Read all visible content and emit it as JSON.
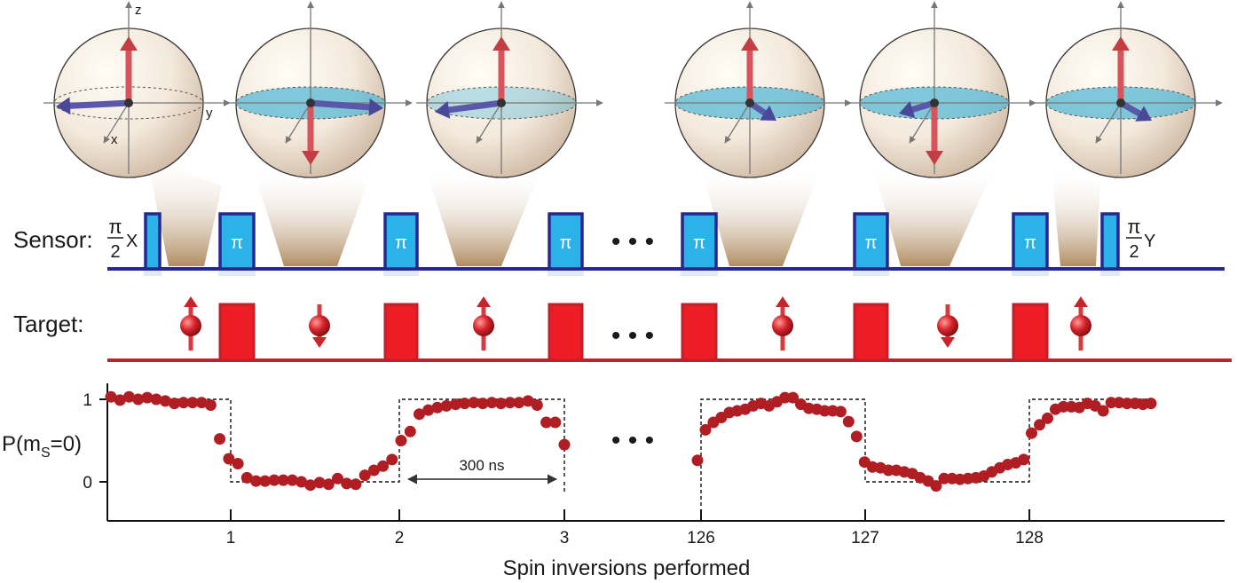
{
  "labels": {
    "sensor": "Sensor:",
    "target": "Target:",
    "ylabel": "P(m",
    "ylabel_sub": "S",
    "ylabel_tail": "=0)",
    "xlabel": "Spin inversions performed",
    "interval": "300 ns",
    "ellipsis": "• • •"
  },
  "sphere_axes": {
    "z": "z",
    "y": "y",
    "x": "x"
  },
  "pulses": {
    "pi": "π",
    "half_num": "π",
    "half_den": "2",
    "first_axis": "X",
    "last_axis": "Y"
  },
  "target_spins": [
    "up",
    "down",
    "up",
    "up",
    "down",
    "up"
  ],
  "colors": {
    "sensor_line": "#25288f",
    "sensor_fill": "#2bb2e8",
    "target_line": "#c0202a",
    "target_fill": "#ee1c25",
    "data": "#b01e24",
    "cone": "#a88050",
    "equator": "#57b8d6"
  },
  "chart_data": {
    "type": "scatter",
    "xlabel": "Spin inversions performed",
    "ylabel": "P(m_S=0)",
    "x_tick_labels": [
      "1",
      "2",
      "3",
      "126",
      "127",
      "128"
    ],
    "y_tick_labels": [
      "0",
      "1"
    ],
    "ylim": [
      -0.35,
      1.1
    ],
    "segments": [
      {
        "x_range": [
          0,
          3
        ],
        "values": [
          1.03,
          0.99,
          1.03,
          1.0,
          1.02,
          1.0,
          0.98,
          0.95,
          0.96,
          0.96,
          0.96,
          0.93,
          0.52,
          0.28,
          0.22,
          0.05,
          0.01,
          0.01,
          0.02,
          0.02,
          0.02,
          0.0,
          -0.04,
          -0.01,
          -0.03,
          0.04,
          -0.02,
          -0.03,
          0.08,
          0.14,
          0.19,
          0.27,
          0.5,
          0.61,
          0.82,
          0.87,
          0.9,
          0.92,
          0.94,
          0.95,
          0.96,
          0.95,
          0.96,
          0.95,
          0.96,
          0.96,
          0.98,
          0.93,
          0.72,
          0.72,
          0.45
        ]
      },
      {
        "x_range": [
          126,
          129
        ],
        "values": [
          0.26,
          0.63,
          0.72,
          0.78,
          0.84,
          0.86,
          0.88,
          0.92,
          0.95,
          0.92,
          0.97,
          1.02,
          1.02,
          0.94,
          0.89,
          0.88,
          0.86,
          0.86,
          0.85,
          0.73,
          0.55,
          0.24,
          0.18,
          0.17,
          0.14,
          0.14,
          0.12,
          0.1,
          0.05,
          0.01,
          -0.05,
          0.04,
          0.04,
          0.03,
          0.04,
          0.05,
          0.07,
          0.12,
          0.17,
          0.21,
          0.23,
          0.27,
          0.59,
          0.69,
          0.77,
          0.88,
          0.91,
          0.91,
          0.9,
          0.95,
          0.92,
          0.86,
          0.96,
          0.96,
          0.95,
          0.95,
          0.94,
          0.95
        ]
      }
    ],
    "ideal_levels": [
      1,
      0
    ]
  }
}
